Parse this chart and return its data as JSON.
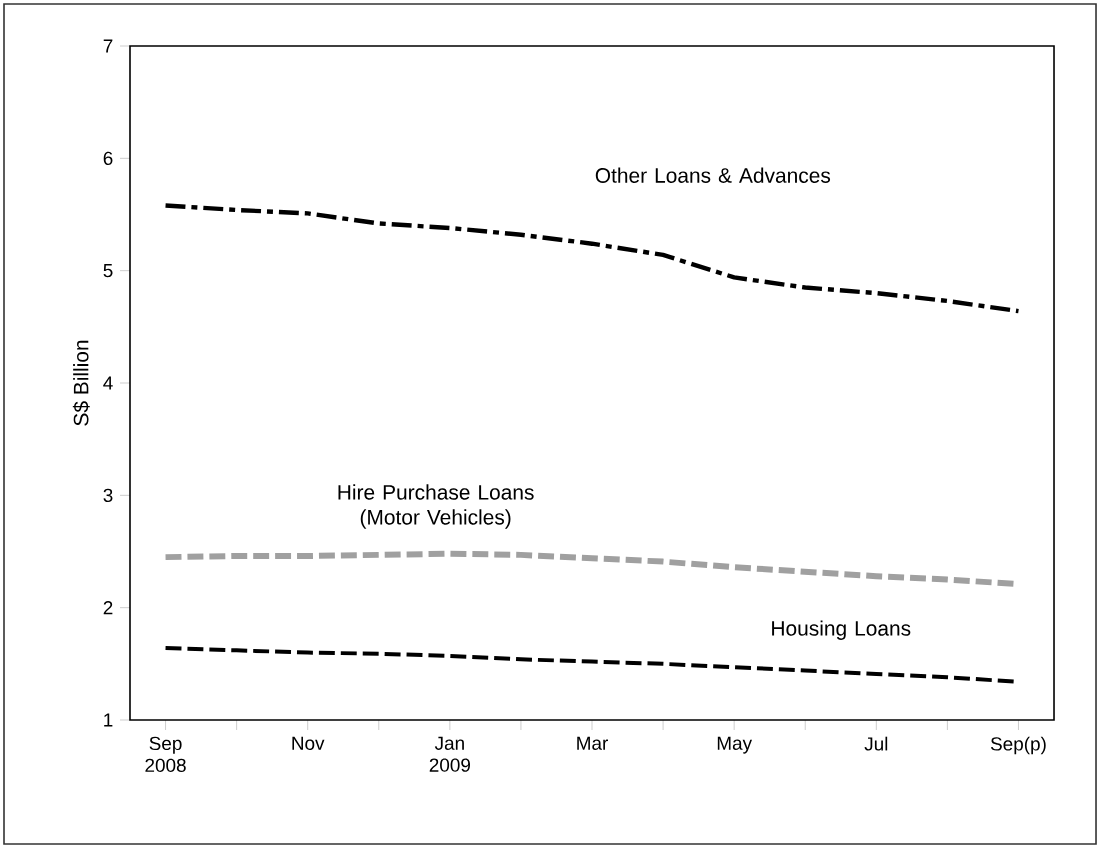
{
  "chart_data": {
    "type": "line",
    "ylabel": "S$ Billion",
    "categories": [
      "Sep 2008",
      null,
      "Nov",
      null,
      "Jan 2009",
      null,
      "Mar",
      null,
      "May",
      null,
      "Jul",
      null,
      "Sep(p)"
    ],
    "ylim": [
      1,
      7
    ],
    "yticks": [
      1,
      2,
      3,
      4,
      5,
      6,
      7
    ],
    "grid": false,
    "legend": false,
    "marker": "none",
    "series": [
      {
        "name": "Other Loans & Advances",
        "color": "#000000",
        "line_style": "dashdot",
        "values": [
          5.58,
          5.54,
          5.51,
          5.42,
          5.38,
          5.32,
          5.24,
          5.14,
          4.94,
          4.85,
          4.8,
          4.73,
          4.64
        ]
      },
      {
        "name": "Hire Purchase Loans (Motor Vehicles)",
        "color": "#a0a0a0",
        "line_style": "dashed",
        "values": [
          2.45,
          2.46,
          2.46,
          2.47,
          2.48,
          2.47,
          2.44,
          2.41,
          2.36,
          2.32,
          2.28,
          2.25,
          2.21
        ]
      },
      {
        "name": "Housing Loans",
        "color": "#000000",
        "line_style": "dashed",
        "values": [
          1.64,
          1.62,
          1.6,
          1.59,
          1.57,
          1.54,
          1.52,
          1.5,
          1.47,
          1.44,
          1.41,
          1.38,
          1.34
        ]
      }
    ]
  }
}
